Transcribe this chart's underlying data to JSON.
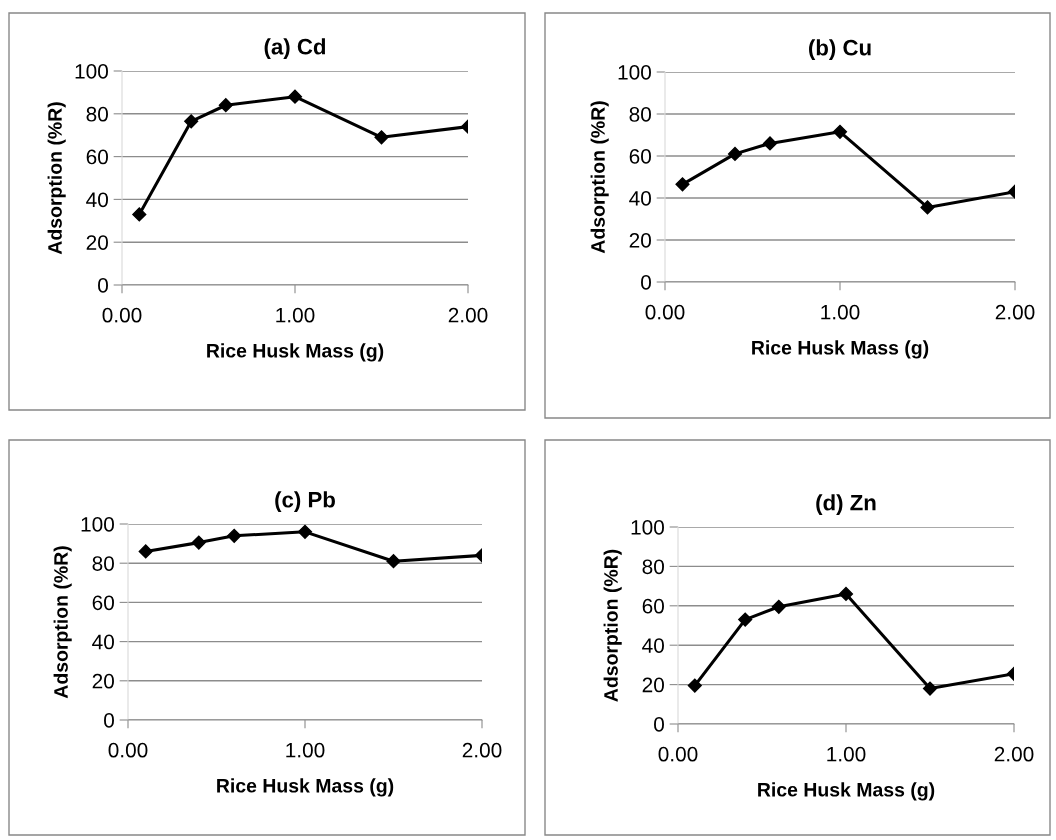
{
  "chart_data": [
    {
      "type": "line",
      "title": "(a) Cd",
      "xlabel": "Rice Husk Mass (g)",
      "ylabel": "Adsorption (%R)",
      "x": [
        0.1,
        0.4,
        0.6,
        1.0,
        1.5,
        2.0
      ],
      "series": [
        {
          "color": "#000000",
          "values": [
            33,
            76.5,
            84,
            88,
            69,
            74
          ]
        }
      ],
      "xlim": [
        0,
        2
      ],
      "xticks": [
        {
          "value": 0,
          "label": "0.00"
        },
        {
          "value": 1,
          "label": "1.00"
        },
        {
          "value": 2,
          "label": "2.00"
        }
      ],
      "ylim": [
        0,
        100
      ],
      "yticks": [
        0,
        20,
        40,
        60,
        80,
        100
      ],
      "grid": "y",
      "marker": "diamond",
      "line_style": "solid"
    },
    {
      "type": "line",
      "title": "(b) Cu",
      "xlabel": "Rice Husk Mass (g)",
      "ylabel": "Adsorption (%R)",
      "x": [
        0.1,
        0.4,
        0.6,
        1.0,
        1.5,
        2.0
      ],
      "series": [
        {
          "color": "#000000",
          "values": [
            46.5,
            61,
            66,
            71.5,
            35.5,
            43
          ]
        }
      ],
      "xlim": [
        0,
        2
      ],
      "xticks": [
        {
          "value": 0,
          "label": "0.00"
        },
        {
          "value": 1,
          "label": "1.00"
        },
        {
          "value": 2,
          "label": "2.00"
        }
      ],
      "ylim": [
        0,
        100
      ],
      "yticks": [
        0,
        20,
        40,
        60,
        80,
        100
      ],
      "grid": "y",
      "marker": "diamond",
      "line_style": "solid"
    },
    {
      "type": "line",
      "title": "(c) Pb",
      "xlabel": "Rice Husk Mass (g)",
      "ylabel": "Adsorption (%R)",
      "x": [
        0.1,
        0.4,
        0.6,
        1.0,
        1.5,
        2.0
      ],
      "series": [
        {
          "color": "#000000",
          "values": [
            86,
            90.5,
            94,
            96,
            81,
            84
          ]
        }
      ],
      "xlim": [
        0,
        2
      ],
      "xticks": [
        {
          "value": 0,
          "label": "0.00"
        },
        {
          "value": 1,
          "label": "1.00"
        },
        {
          "value": 2,
          "label": "2.00"
        }
      ],
      "ylim": [
        0,
        100
      ],
      "yticks": [
        0,
        20,
        40,
        60,
        80,
        100
      ],
      "grid": "y",
      "marker": "diamond",
      "line_style": "solid"
    },
    {
      "type": "line",
      "title": "(d) Zn",
      "xlabel": "Rice Husk Mass (g)",
      "ylabel": "Adsorption (%R)",
      "x": [
        0.1,
        0.4,
        0.6,
        1.0,
        1.5,
        2.0
      ],
      "series": [
        {
          "color": "#000000",
          "values": [
            19.5,
            53,
            59.5,
            66,
            18,
            25.5
          ]
        }
      ],
      "xlim": [
        0,
        2
      ],
      "xticks": [
        {
          "value": 0,
          "label": "0.00"
        },
        {
          "value": 1,
          "label": "1.00"
        },
        {
          "value": 2,
          "label": "2.00"
        }
      ],
      "ylim": [
        0,
        100
      ],
      "yticks": [
        0,
        20,
        40,
        60,
        80,
        100
      ],
      "grid": "y",
      "marker": "diamond",
      "line_style": "solid"
    }
  ]
}
